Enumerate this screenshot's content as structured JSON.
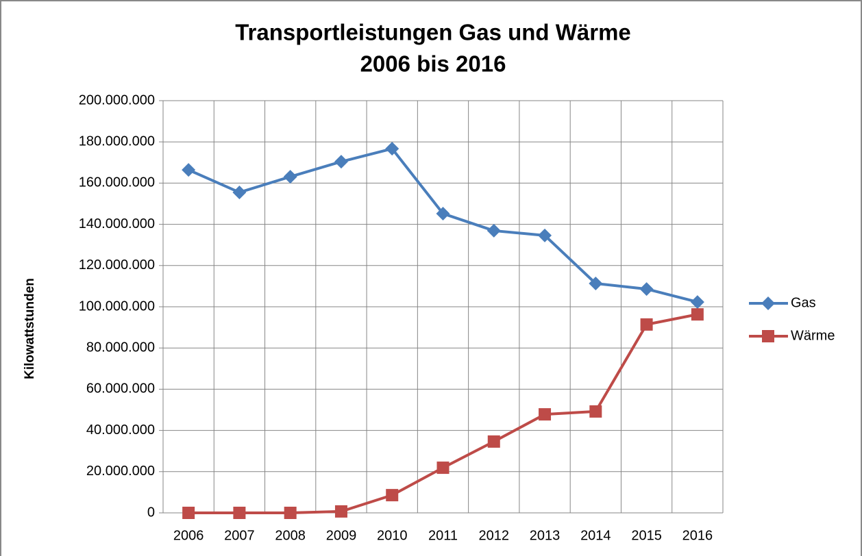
{
  "chart_data": {
    "type": "line",
    "title": "Transportleistungen Gas und Wärme",
    "subtitle": "2006 bis 2016",
    "y_label": "Kilowattstunden",
    "categories": [
      "2006",
      "2007",
      "2008",
      "2009",
      "2010",
      "2011",
      "2012",
      "2013",
      "2014",
      "2015",
      "2016"
    ],
    "series": [
      {
        "name": "Gas",
        "color": "#4a7ebb",
        "marker": "diamond",
        "values": [
          166400000,
          155500000,
          163100000,
          170400000,
          176700000,
          145200000,
          136900000,
          134600000,
          111300000,
          108600000,
          102300000
        ]
      },
      {
        "name": "Wärme",
        "color": "#be4b48",
        "marker": "square",
        "values": [
          0,
          0,
          0,
          700000,
          8600000,
          21900000,
          34600000,
          47800000,
          49200000,
          91400000,
          96300000
        ]
      }
    ],
    "ylim": [
      0,
      200000000
    ],
    "yticks": [
      0,
      {
        "value": 20000000,
        "label": "20.000.000"
      },
      {
        "value": 40000000,
        "label": "40.000.000"
      },
      {
        "value": 60000000,
        "label": "60.000.000"
      },
      {
        "value": 80000000,
        "label": "80.000.000"
      },
      {
        "value": 100000000,
        "label": "100.000.000"
      },
      {
        "value": 120000000,
        "label": "120.000.000"
      },
      {
        "value": 140000000,
        "label": "140.000.000"
      },
      {
        "value": 160000000,
        "label": "160.000.000"
      },
      {
        "value": 180000000,
        "label": "180.000.000"
      },
      {
        "value": 200000000,
        "label": "200.000.000"
      }
    ],
    "grid": true,
    "legend": "right"
  }
}
